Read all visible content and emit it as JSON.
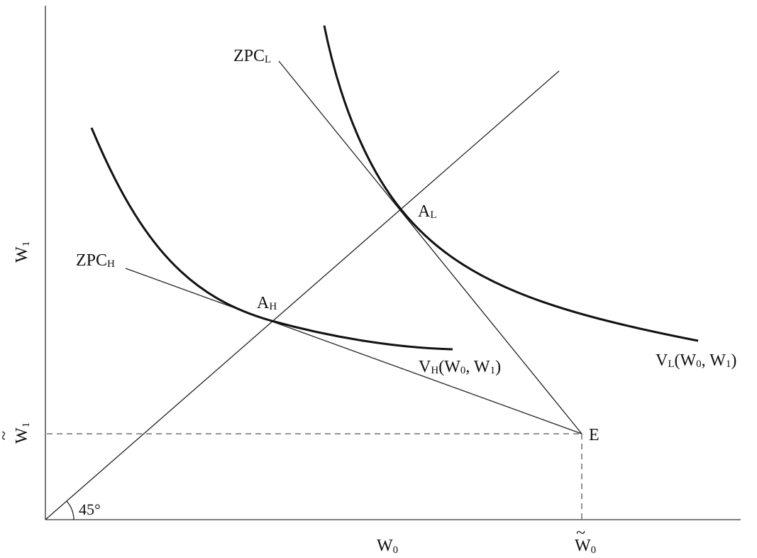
{
  "axes": {
    "y_label": "W",
    "y_label_sub": "1",
    "x_label": "W",
    "x_label_sub": "0",
    "x_tilde_label": "W",
    "x_tilde_sub": "0",
    "y_tilde_label": "W",
    "y_tilde_sub": "1",
    "tilde": "~"
  },
  "angle_label": "45°",
  "lines": {
    "zpc_l": {
      "main": "ZPC",
      "sub": "L"
    },
    "zpc_h": {
      "main": "ZPC",
      "sub": "H"
    }
  },
  "points": {
    "a_l": {
      "main": "A",
      "sub": "L"
    },
    "a_h": {
      "main": "A",
      "sub": "H"
    },
    "e": {
      "main": "E"
    }
  },
  "curves": {
    "v_h": {
      "v": "V",
      "sub": "H",
      "w0": "W",
      "w0_sub": "0",
      "sep": ", ",
      "w1": "W",
      "w1_sub": "1",
      "open": "(",
      "close": ")"
    },
    "v_l": {
      "v": "V",
      "sub": "L",
      "w0": "W",
      "w0_sub": "0",
      "sep": ", ",
      "w1": "W",
      "w1_sub": "1",
      "open": "(",
      "close": ")"
    }
  }
}
